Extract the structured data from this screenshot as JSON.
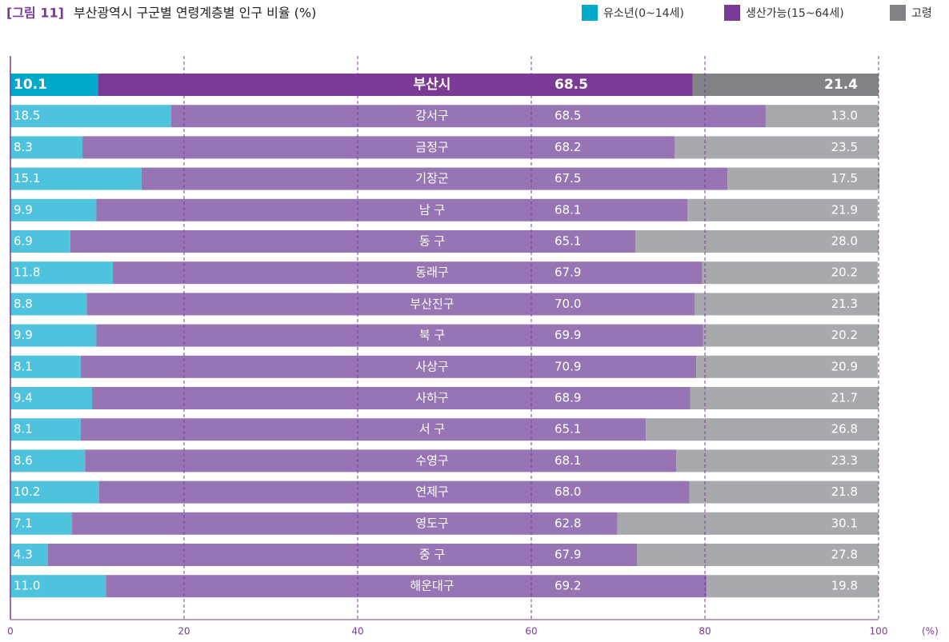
{
  "chart_data": {
    "type": "stacked_barh",
    "figure_label": "[그림 11]",
    "title": "부산광역시 구군별 연령계층별 인구 비율 (%)",
    "x_unit": "(%)",
    "categories": [
      "부산시",
      "강서구",
      "금정구",
      "기장군",
      "남 구",
      "동 구",
      "동래구",
      "부산진구",
      "북 구",
      "사상구",
      "사하구",
      "서 구",
      "수영구",
      "연제구",
      "영도구",
      "중 구",
      "해운대구"
    ],
    "series": [
      {
        "name": "유소년(0~14세)",
        "color": "#4fc3dd",
        "values": [
          10.1,
          18.5,
          8.3,
          15.1,
          9.9,
          6.9,
          11.8,
          8.8,
          9.9,
          8.1,
          9.4,
          8.1,
          8.6,
          10.2,
          7.1,
          4.3,
          11.0
        ],
        "value_labels": [
          "10.1",
          "18.5",
          "8.3",
          "15.1",
          "9.9",
          "6.9",
          "11.8",
          "8.8",
          "9.9",
          "8.1",
          "9.4",
          "8.1",
          "8.6",
          "10.2",
          "7.1",
          "4.3",
          "11.0"
        ]
      },
      {
        "name": "생산가능(15~64세)",
        "color": "#9775b5",
        "values": [
          68.5,
          68.5,
          68.2,
          67.5,
          68.1,
          65.1,
          67.9,
          70.0,
          69.9,
          70.9,
          68.9,
          65.1,
          68.1,
          68.0,
          62.8,
          67.9,
          69.2
        ],
        "value_labels": [
          "68.5",
          "68.5",
          "68.2",
          "67.5",
          "68.1",
          "65.1",
          "67.9",
          "70.0",
          "69.9",
          "70.9",
          "68.9",
          "65.1",
          "68.1",
          "68.0",
          "62.8",
          "67.9",
          "69.2"
        ]
      },
      {
        "name": "고령",
        "color": "#a7a9ac",
        "values": [
          21.4,
          13.0,
          23.5,
          17.5,
          21.9,
          28.0,
          20.2,
          21.3,
          20.2,
          20.9,
          21.7,
          26.8,
          23.3,
          21.8,
          30.1,
          27.8,
          19.8
        ],
        "value_labels": [
          "21.4",
          "13.0",
          "23.5",
          "17.5",
          "21.9",
          "28.0",
          "20.2",
          "21.3",
          "20.2",
          "20.9",
          "21.7",
          "26.8",
          "23.3",
          "21.8",
          "30.1",
          "27.8",
          "19.8"
        ]
      }
    ],
    "highlight_colors": [
      "#00a9c9",
      "#7b3a96",
      "#808285"
    ],
    "xlim": [
      0,
      100
    ],
    "xticks": [
      0,
      20,
      40,
      60,
      80,
      100
    ],
    "grid": true
  }
}
